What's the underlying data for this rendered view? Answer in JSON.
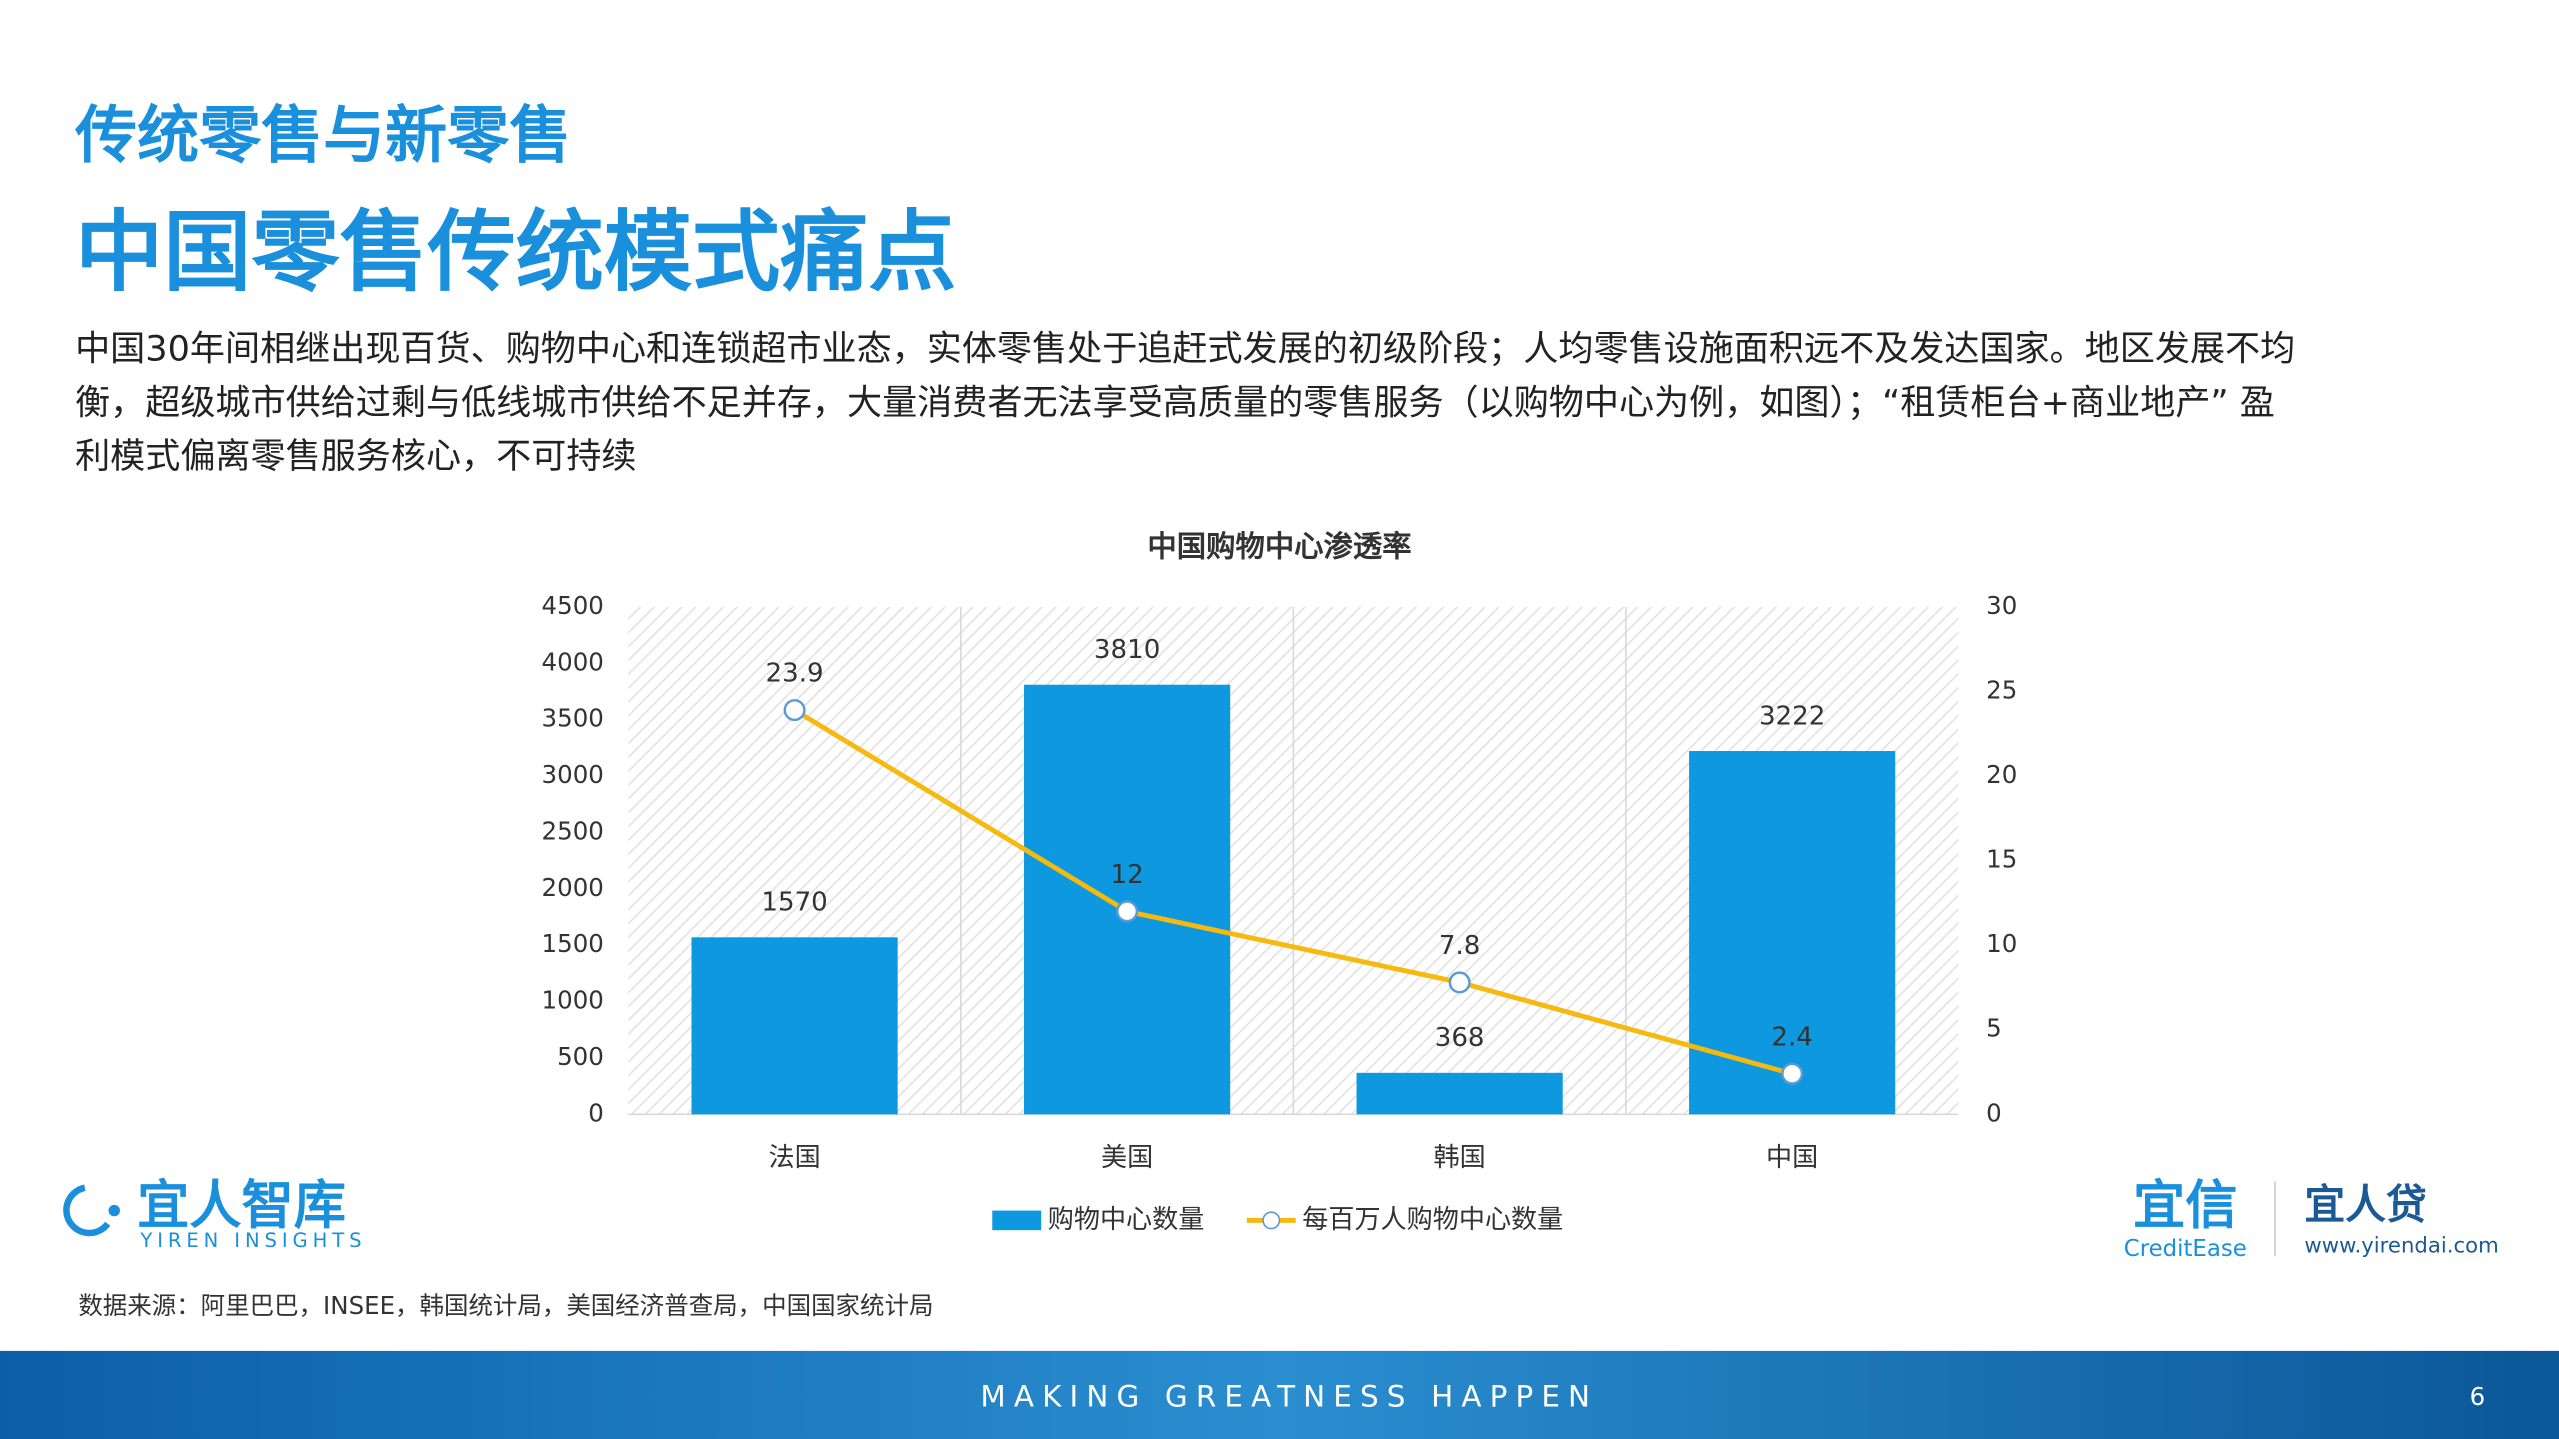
{
  "header": {
    "subtitle": "传统零售与新零售",
    "title": "中国零售传统模式痛点"
  },
  "body": {
    "lines": [
      "中国30年间相继出现百货、购物中心和连锁超市业态，实体零售处于追赶式发展的初级阶段；人均零售设施面积远不及发达国家。地区发展不均",
      "衡，超级城市供给过剩与低线城市供给不足并存，大量消费者无法享受高质量的零售服务（以购物中心为例，如图）；“租赁柜台+商业地产” 盈",
      "利模式偏离零售服务核心，不可持续"
    ]
  },
  "chart_data": {
    "type": "bar-line",
    "title": "中国购物中心渗透率",
    "categories": [
      "法国",
      "美国",
      "韩国",
      "中国"
    ],
    "series": [
      {
        "name": "购物中心数量",
        "type": "bar",
        "color": "#0d98e0",
        "values": [
          1570,
          3810,
          368,
          3222
        ]
      },
      {
        "name": "每百万人购物中心数量",
        "type": "line",
        "axis": "y2",
        "color": "#f5b90f",
        "values": [
          23.9,
          12,
          7.8,
          2.4
        ]
      }
    ],
    "ylim": [
      0,
      4500
    ],
    "yticks": [
      0,
      500,
      1000,
      1500,
      2000,
      2500,
      3000,
      3500,
      4000,
      4500
    ],
    "y2lim": [
      0,
      30
    ],
    "y2ticks": [
      0,
      5,
      10,
      15,
      20,
      25,
      30
    ],
    "legend": "bottom"
  },
  "source": "数据来源：阿里巴巴，INSEE，韩国统计局，美国经济普查局，中国国家统计局",
  "logos": {
    "yiren_insights": {
      "name": "宜人智库",
      "sub": "YIREN INSIGHTS"
    },
    "creditease": {
      "name": "宜信",
      "sub": "CreditEase"
    },
    "yirendai": {
      "name": "宜人贷",
      "sub": "www.yirendai.com"
    }
  },
  "footer": {
    "slogan": "MAKING GREATNESS HAPPEN",
    "page": "6"
  }
}
